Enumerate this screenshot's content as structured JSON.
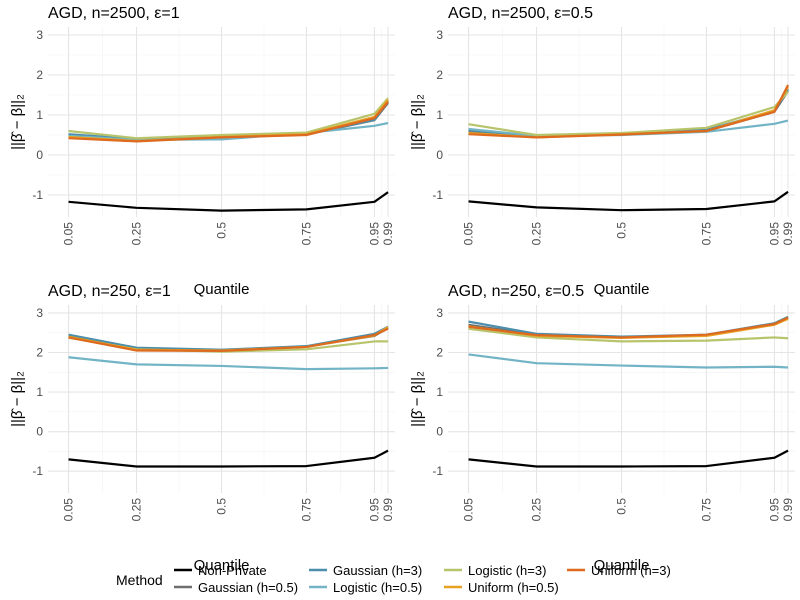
{
  "chart_data": {
    "type": "line",
    "x": [
      0.05,
      0.25,
      0.5,
      0.75,
      0.95,
      0.99
    ],
    "x_tick_labels": [
      "0.05",
      "0.25",
      "0.5",
      "0.75",
      "0.95",
      "0.99"
    ],
    "xlabel": "Quantile",
    "ylabel": "||β̂ − β||₂",
    "ylim": [
      -1.55,
      3.2
    ],
    "y_ticks": [
      -1,
      0,
      1,
      2,
      3
    ],
    "grid": true,
    "legend": {
      "title": "Method",
      "placement": "bottom",
      "entries": [
        {
          "name": "Non-Private",
          "color": "#000000"
        },
        {
          "name": "Gaussian (h=0.5)",
          "color": "#6e6e6e"
        },
        {
          "name": "Gaussian (h=3)",
          "color": "#4a8eab"
        },
        {
          "name": "Logistic (h=0.5)",
          "color": "#72b4c6"
        },
        {
          "name": "Logistic (h=3)",
          "color": "#b8c46b"
        },
        {
          "name": "Uniform (h=0.5)",
          "color": "#e7a223"
        },
        {
          "name": "Uniform (h=3)",
          "color": "#dd6a1f"
        }
      ]
    },
    "panels": [
      {
        "title": "AGD, n=2500, ε=1",
        "series": [
          {
            "name": "Non-Private",
            "values": [
              -1.17,
              -1.32,
              -1.39,
              -1.36,
              -1.17,
              -0.93
            ]
          },
          {
            "name": "Gaussian (h=0.5)",
            "values": [
              0.5,
              0.38,
              0.44,
              0.51,
              0.87,
              1.3
            ]
          },
          {
            "name": "Gaussian (h=3)",
            "values": [
              0.52,
              0.4,
              0.46,
              0.52,
              0.88,
              1.35
            ]
          },
          {
            "name": "Logistic (h=0.5)",
            "values": [
              0.48,
              0.38,
              0.39,
              0.55,
              0.73,
              0.8
            ]
          },
          {
            "name": "Logistic (h=3)",
            "values": [
              0.6,
              0.42,
              0.5,
              0.56,
              1.03,
              1.42
            ]
          },
          {
            "name": "Uniform (h=0.5)",
            "values": [
              0.45,
              0.35,
              0.45,
              0.52,
              0.95,
              1.38
            ]
          },
          {
            "name": "Uniform (h=3)",
            "values": [
              0.42,
              0.34,
              0.44,
              0.5,
              0.92,
              1.33
            ]
          }
        ]
      },
      {
        "title": "AGD, n=2500, ε=0.5",
        "series": [
          {
            "name": "Non-Private",
            "values": [
              -1.16,
              -1.31,
              -1.38,
              -1.35,
              -1.16,
              -0.92
            ]
          },
          {
            "name": "Gaussian (h=0.5)",
            "values": [
              0.6,
              0.46,
              0.52,
              0.6,
              1.08,
              1.6
            ]
          },
          {
            "name": "Gaussian (h=3)",
            "values": [
              0.62,
              0.47,
              0.53,
              0.63,
              1.1,
              1.65
            ]
          },
          {
            "name": "Logistic (h=0.5)",
            "values": [
              0.65,
              0.48,
              0.5,
              0.58,
              0.78,
              0.86
            ]
          },
          {
            "name": "Logistic (h=3)",
            "values": [
              0.77,
              0.5,
              0.55,
              0.68,
              1.2,
              1.58
            ]
          },
          {
            "name": "Uniform (h=0.5)",
            "values": [
              0.55,
              0.44,
              0.52,
              0.6,
              1.12,
              1.7
            ]
          },
          {
            "name": "Uniform (h=3)",
            "values": [
              0.52,
              0.44,
              0.51,
              0.6,
              1.08,
              1.75
            ]
          }
        ]
      },
      {
        "title": "AGD, n=250, ε=1",
        "series": [
          {
            "name": "Non-Private",
            "values": [
              -0.7,
              -0.88,
              -0.88,
              -0.87,
              -0.66,
              -0.48
            ]
          },
          {
            "name": "Gaussian (h=0.5)",
            "values": [
              2.42,
              2.1,
              2.06,
              2.15,
              2.42,
              2.62
            ]
          },
          {
            "name": "Gaussian (h=3)",
            "values": [
              2.45,
              2.12,
              2.07,
              2.16,
              2.47,
              2.65
            ]
          },
          {
            "name": "Logistic (h=0.5)",
            "values": [
              1.88,
              1.7,
              1.66,
              1.58,
              1.6,
              1.61
            ]
          },
          {
            "name": "Logistic (h=3)",
            "values": [
              2.37,
              2.08,
              2.02,
              2.08,
              2.28,
              2.28
            ]
          },
          {
            "name": "Uniform (h=0.5)",
            "values": [
              2.4,
              2.07,
              2.05,
              2.14,
              2.43,
              2.64
            ]
          },
          {
            "name": "Uniform (h=3)",
            "values": [
              2.38,
              2.05,
              2.04,
              2.14,
              2.44,
              2.6
            ]
          }
        ]
      },
      {
        "title": "AGD, n=250, ε=0.5",
        "series": [
          {
            "name": "Non-Private",
            "values": [
              -0.7,
              -0.88,
              -0.88,
              -0.87,
              -0.66,
              -0.48
            ]
          },
          {
            "name": "Gaussian (h=0.5)",
            "values": [
              2.7,
              2.45,
              2.38,
              2.43,
              2.72,
              2.87
            ]
          },
          {
            "name": "Gaussian (h=3)",
            "values": [
              2.78,
              2.47,
              2.4,
              2.45,
              2.74,
              2.9
            ]
          },
          {
            "name": "Logistic (h=0.5)",
            "values": [
              1.95,
              1.73,
              1.67,
              1.62,
              1.64,
              1.62
            ]
          },
          {
            "name": "Logistic (h=3)",
            "values": [
              2.6,
              2.38,
              2.28,
              2.3,
              2.38,
              2.36
            ]
          },
          {
            "name": "Uniform (h=0.5)",
            "values": [
              2.66,
              2.42,
              2.37,
              2.42,
              2.7,
              2.85
            ]
          },
          {
            "name": "Uniform (h=3)",
            "values": [
              2.65,
              2.44,
              2.38,
              2.45,
              2.72,
              2.88
            ]
          }
        ]
      }
    ]
  }
}
